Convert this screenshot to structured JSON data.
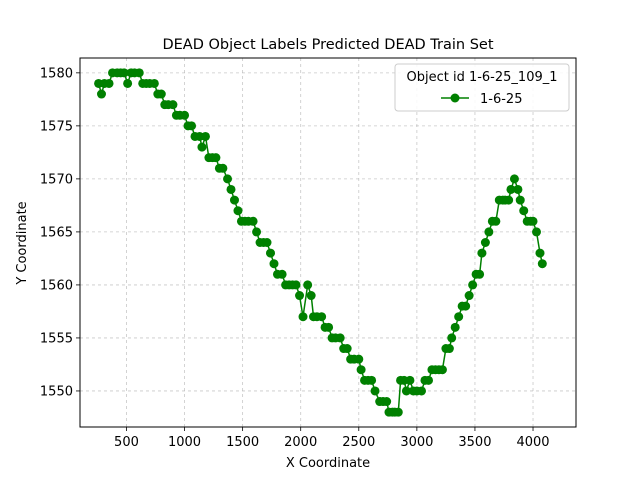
{
  "chart_data": {
    "type": "line",
    "title": "DEAD Object Labels Predicted DEAD Train Set",
    "xlabel": "X Coordinate",
    "ylabel": "Y Coordinate",
    "xlim": [
      100,
      4370
    ],
    "ylim": [
      1546.6,
      1581.4
    ],
    "xticks": [
      500,
      1000,
      1500,
      2000,
      2500,
      3000,
      3500,
      4000
    ],
    "yticks": [
      1550,
      1555,
      1560,
      1565,
      1570,
      1575,
      1580
    ],
    "grid": true,
    "legend": {
      "title": "Object id 1-6-25_109_1",
      "placement": "top-right"
    },
    "series": [
      {
        "name": "1-6-25",
        "color": "#008000",
        "marker": "circle",
        "points": [
          [
            260,
            1579
          ],
          [
            285,
            1578
          ],
          [
            310,
            1579
          ],
          [
            350,
            1579
          ],
          [
            380,
            1580
          ],
          [
            420,
            1580
          ],
          [
            450,
            1580
          ],
          [
            480,
            1580
          ],
          [
            510,
            1579
          ],
          [
            540,
            1580
          ],
          [
            570,
            1580
          ],
          [
            610,
            1580
          ],
          [
            640,
            1579
          ],
          [
            670,
            1579
          ],
          [
            700,
            1579
          ],
          [
            740,
            1579
          ],
          [
            770,
            1578
          ],
          [
            800,
            1578
          ],
          [
            830,
            1577
          ],
          [
            860,
            1577
          ],
          [
            900,
            1577
          ],
          [
            930,
            1576
          ],
          [
            960,
            1576
          ],
          [
            1000,
            1576
          ],
          [
            1030,
            1575
          ],
          [
            1060,
            1575
          ],
          [
            1090,
            1574
          ],
          [
            1130,
            1574
          ],
          [
            1150,
            1573
          ],
          [
            1180,
            1574
          ],
          [
            1210,
            1572
          ],
          [
            1240,
            1572
          ],
          [
            1270,
            1572
          ],
          [
            1300,
            1571
          ],
          [
            1330,
            1571
          ],
          [
            1370,
            1570
          ],
          [
            1400,
            1569
          ],
          [
            1430,
            1568
          ],
          [
            1460,
            1567
          ],
          [
            1490,
            1566
          ],
          [
            1520,
            1566
          ],
          [
            1550,
            1566
          ],
          [
            1590,
            1566
          ],
          [
            1620,
            1565
          ],
          [
            1650,
            1564
          ],
          [
            1680,
            1564
          ],
          [
            1710,
            1564
          ],
          [
            1740,
            1563
          ],
          [
            1770,
            1562
          ],
          [
            1800,
            1561
          ],
          [
            1840,
            1561
          ],
          [
            1870,
            1560
          ],
          [
            1900,
            1560
          ],
          [
            1930,
            1560
          ],
          [
            1960,
            1560
          ],
          [
            1990,
            1559
          ],
          [
            2020,
            1557
          ],
          [
            2060,
            1560
          ],
          [
            2090,
            1559
          ],
          [
            2110,
            1557
          ],
          [
            2140,
            1557
          ],
          [
            2180,
            1557
          ],
          [
            2210,
            1556
          ],
          [
            2240,
            1556
          ],
          [
            2270,
            1555
          ],
          [
            2300,
            1555
          ],
          [
            2340,
            1555
          ],
          [
            2370,
            1554
          ],
          [
            2400,
            1554
          ],
          [
            2430,
            1553
          ],
          [
            2460,
            1553
          ],
          [
            2500,
            1553
          ],
          [
            2520,
            1552
          ],
          [
            2550,
            1551
          ],
          [
            2580,
            1551
          ],
          [
            2610,
            1551
          ],
          [
            2640,
            1550
          ],
          [
            2680,
            1549
          ],
          [
            2710,
            1549
          ],
          [
            2740,
            1549
          ],
          [
            2760,
            1548
          ],
          [
            2790,
            1548
          ],
          [
            2810,
            1548
          ],
          [
            2840,
            1548
          ],
          [
            2860,
            1551
          ],
          [
            2890,
            1551
          ],
          [
            2910,
            1550
          ],
          [
            2940,
            1551
          ],
          [
            2970,
            1550
          ],
          [
            3000,
            1550
          ],
          [
            3040,
            1550
          ],
          [
            3070,
            1551
          ],
          [
            3100,
            1551
          ],
          [
            3130,
            1552
          ],
          [
            3160,
            1552
          ],
          [
            3190,
            1552
          ],
          [
            3220,
            1552
          ],
          [
            3250,
            1554
          ],
          [
            3280,
            1554
          ],
          [
            3300,
            1555
          ],
          [
            3330,
            1556
          ],
          [
            3360,
            1557
          ],
          [
            3390,
            1558
          ],
          [
            3420,
            1558
          ],
          [
            3450,
            1559
          ],
          [
            3480,
            1560
          ],
          [
            3510,
            1561
          ],
          [
            3540,
            1561
          ],
          [
            3560,
            1563
          ],
          [
            3590,
            1564
          ],
          [
            3620,
            1565
          ],
          [
            3650,
            1566
          ],
          [
            3680,
            1566
          ],
          [
            3710,
            1568
          ],
          [
            3740,
            1568
          ],
          [
            3760,
            1568
          ],
          [
            3790,
            1568
          ],
          [
            3810,
            1569
          ],
          [
            3840,
            1570
          ],
          [
            3870,
            1569
          ],
          [
            3890,
            1568
          ],
          [
            3920,
            1567
          ],
          [
            3950,
            1566
          ],
          [
            3980,
            1566
          ],
          [
            4000,
            1566
          ],
          [
            4030,
            1565
          ],
          [
            4060,
            1563
          ],
          [
            4080,
            1562
          ]
        ]
      }
    ]
  }
}
